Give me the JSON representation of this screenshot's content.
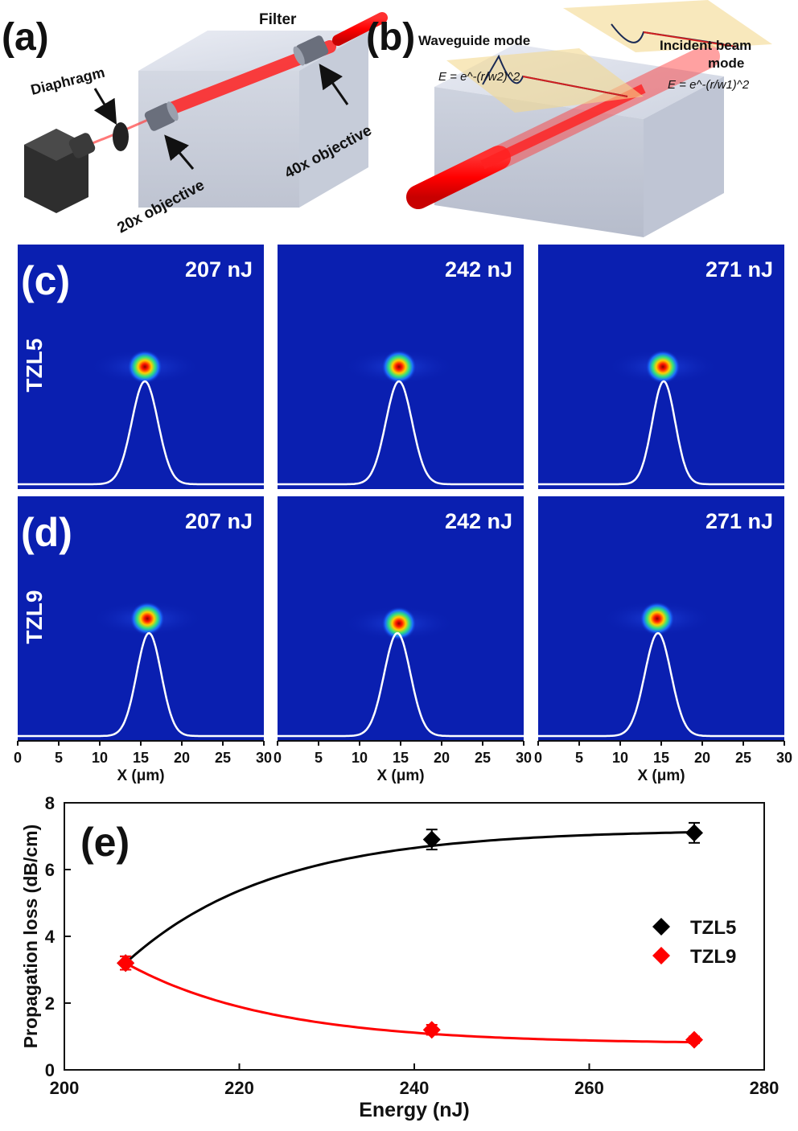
{
  "panel_a": {
    "label": "(a)",
    "filter": "Filter",
    "diaphragm": "Diaphragm",
    "obj20": "20x objective",
    "obj40": "40x objective"
  },
  "panel_b": {
    "label": "(b)",
    "waveguide_mode": "Waveguide mode",
    "incident_line1": "Incident beam",
    "incident_line2": "mode",
    "eq_wg": "E = e^-(r/w2)^2",
    "eq_in": "E = e^-(r/w1)^2"
  },
  "modes": {
    "row_c": {
      "label": "(c)",
      "sample": "TZL5",
      "panels": [
        {
          "energy": "207 nJ",
          "spot_x": 15.5,
          "spot_y": 0.5,
          "peak_x": 15.5,
          "peak_width": 1.6
        },
        {
          "energy": "242 nJ",
          "spot_x": 14.8,
          "spot_y": 0.5,
          "peak_x": 14.8,
          "peak_width": 1.6
        },
        {
          "energy": "271 nJ",
          "spot_x": 15.2,
          "spot_y": 0.5,
          "peak_x": 15.3,
          "peak_width": 1.4
        }
      ]
    },
    "row_d": {
      "label": "(d)",
      "sample": "TZL9",
      "panels": [
        {
          "energy": "207 nJ",
          "spot_x": 15.8,
          "spot_y": 0.5,
          "peak_x": 16.0,
          "peak_width": 1.5
        },
        {
          "energy": "242 nJ",
          "spot_x": 14.8,
          "spot_y": 0.52,
          "peak_x": 14.6,
          "peak_width": 1.6
        },
        {
          "energy": "271 nJ",
          "spot_x": 14.5,
          "spot_y": 0.5,
          "peak_x": 14.6,
          "peak_width": 1.6
        }
      ]
    },
    "x_axis": {
      "label": "X (μm)",
      "ticks": [
        "0",
        "5",
        "10",
        "15",
        "20",
        "25",
        "30"
      ],
      "range": [
        0,
        30
      ]
    }
  },
  "chart_data": {
    "type": "line",
    "label": "(e)",
    "xlabel": "Energy (nJ)",
    "ylabel": "Propagation loss (dB/cm)",
    "xlim": [
      200,
      280
    ],
    "ylim": [
      0,
      8
    ],
    "x_ticks": [
      "200",
      "220",
      "240",
      "260",
      "280"
    ],
    "y_ticks": [
      "0",
      "2",
      "4",
      "6",
      "8"
    ],
    "legend_position": "right",
    "series": [
      {
        "name": "TZL5",
        "color": "#000000",
        "x": [
          207,
          242,
          272
        ],
        "y": [
          3.2,
          6.9,
          7.1
        ],
        "yerr": [
          0.2,
          0.3,
          0.3
        ],
        "fit": {
          "y0": 7.2,
          "a": 4.0,
          "k": 0.06
        }
      },
      {
        "name": "TZL9",
        "color": "#ff0000",
        "x": [
          207,
          242,
          272
        ],
        "y": [
          3.2,
          1.2,
          0.9
        ],
        "yerr": [
          0.2,
          0.15,
          0.1
        ],
        "fit": {
          "y0": 0.78,
          "a": 2.42,
          "k": 0.06
        }
      }
    ]
  }
}
